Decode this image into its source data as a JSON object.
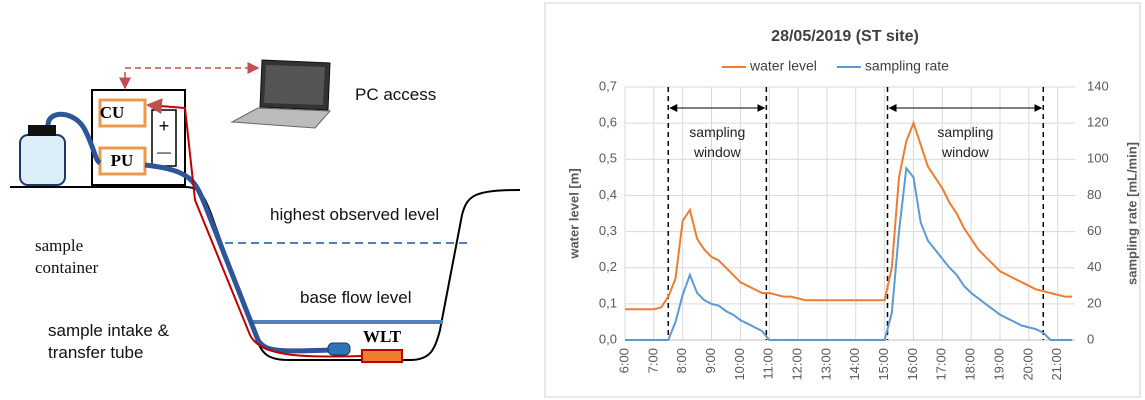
{
  "diagram": {
    "labels": {
      "cu": "CU",
      "pu": "PU",
      "plus": "+",
      "minus": "—",
      "pc": "PC access",
      "highest": "highest observed level",
      "base": "base flow level",
      "container": "sample container",
      "intake": "sample intake & transfer tube",
      "wlt": "WLT"
    }
  },
  "chart_data": {
    "type": "line",
    "title": "28/05/2019 (ST site)",
    "x": [
      6,
      6.25,
      6.5,
      6.75,
      7,
      7.25,
      7.5,
      7.75,
      8,
      8.25,
      8.5,
      8.75,
      9,
      9.25,
      9.5,
      9.75,
      10,
      10.25,
      10.5,
      10.75,
      11,
      11.25,
      11.5,
      11.75,
      12,
      12.25,
      12.5,
      12.75,
      13,
      13.25,
      13.5,
      13.75,
      14,
      14.25,
      14.5,
      14.75,
      15,
      15.25,
      15.5,
      15.75,
      16,
      16.25,
      16.5,
      16.75,
      17,
      17.25,
      17.5,
      17.75,
      18,
      18.25,
      18.5,
      18.75,
      19,
      19.25,
      19.5,
      19.75,
      20,
      20.25,
      20.5,
      20.75,
      21,
      21.25,
      21.5
    ],
    "series": [
      {
        "name": "water level",
        "color": "#ed7d31",
        "values": [
          0.085,
          0.085,
          0.085,
          0.085,
          0.085,
          0.09,
          0.12,
          0.17,
          0.33,
          0.36,
          0.28,
          0.25,
          0.23,
          0.22,
          0.2,
          0.18,
          0.16,
          0.15,
          0.14,
          0.13,
          0.13,
          0.125,
          0.12,
          0.12,
          0.115,
          0.11,
          0.11,
          0.11,
          0.11,
          0.11,
          0.11,
          0.11,
          0.11,
          0.11,
          0.11,
          0.11,
          0.11,
          0.2,
          0.45,
          0.55,
          0.6,
          0.54,
          0.48,
          0.45,
          0.42,
          0.38,
          0.35,
          0.31,
          0.28,
          0.25,
          0.23,
          0.21,
          0.19,
          0.18,
          0.17,
          0.16,
          0.15,
          0.14,
          0.135,
          0.13,
          0.125,
          0.12,
          0.12
        ]
      },
      {
        "name": "sampling rate",
        "color": "#5b9bd5",
        "axis": "y2",
        "values": [
          0,
          0,
          0,
          0,
          0,
          0,
          0,
          10,
          25,
          36,
          26,
          22,
          20,
          19,
          16,
          14,
          11,
          9,
          7,
          5,
          0,
          0,
          0,
          0,
          0,
          0,
          0,
          0,
          0,
          0,
          0,
          0,
          0,
          0,
          0,
          0,
          0,
          15,
          60,
          95,
          90,
          65,
          55,
          50,
          45,
          40,
          36,
          30,
          26,
          23,
          20,
          17,
          14,
          12,
          10,
          8,
          7,
          6,
          4,
          0,
          0,
          0,
          0
        ]
      }
    ],
    "y_label": "water level [m]",
    "y2_label": "sampling rate [mL/min]",
    "xlim": [
      6,
      21.6
    ],
    "xticks": [
      {
        "value": 6,
        "label": "6:00"
      },
      {
        "value": 7,
        "label": "7:00"
      },
      {
        "value": 8,
        "label": "8:00"
      },
      {
        "value": 9,
        "label": "9:00"
      },
      {
        "value": 10,
        "label": "10:00"
      },
      {
        "value": 11,
        "label": "11:00"
      },
      {
        "value": 12,
        "label": "12:00"
      },
      {
        "value": 13,
        "label": "13:00"
      },
      {
        "value": 14,
        "label": "14:00"
      },
      {
        "value": 15,
        "label": "15:00"
      },
      {
        "value": 16,
        "label": "16:00"
      },
      {
        "value": 17,
        "label": "17:00"
      },
      {
        "value": 18,
        "label": "18:00"
      },
      {
        "value": 19,
        "label": "19:00"
      },
      {
        "value": 20,
        "label": "20:00"
      },
      {
        "value": 21,
        "label": "21:00"
      }
    ],
    "ylim": [
      0,
      0.7
    ],
    "yticks": [
      {
        "value": 0,
        "label": "0,0"
      },
      {
        "value": 0.1,
        "label": "0,1"
      },
      {
        "value": 0.2,
        "label": "0,2"
      },
      {
        "value": 0.3,
        "label": "0,3"
      },
      {
        "value": 0.4,
        "label": "0,4"
      },
      {
        "value": 0.5,
        "label": "0,5"
      },
      {
        "value": 0.6,
        "label": "0,6"
      },
      {
        "value": 0.7,
        "label": "0,7"
      }
    ],
    "y2lim": [
      0,
      140
    ],
    "y2ticks": [
      0,
      20,
      40,
      60,
      80,
      100,
      120,
      140
    ],
    "grid": true,
    "legend": "top",
    "annotations": [
      {
        "text": "sampling window",
        "x": [
          7.5,
          10.9
        ]
      },
      {
        "text": "sampling window",
        "x": [
          15.1,
          20.5
        ]
      }
    ]
  }
}
